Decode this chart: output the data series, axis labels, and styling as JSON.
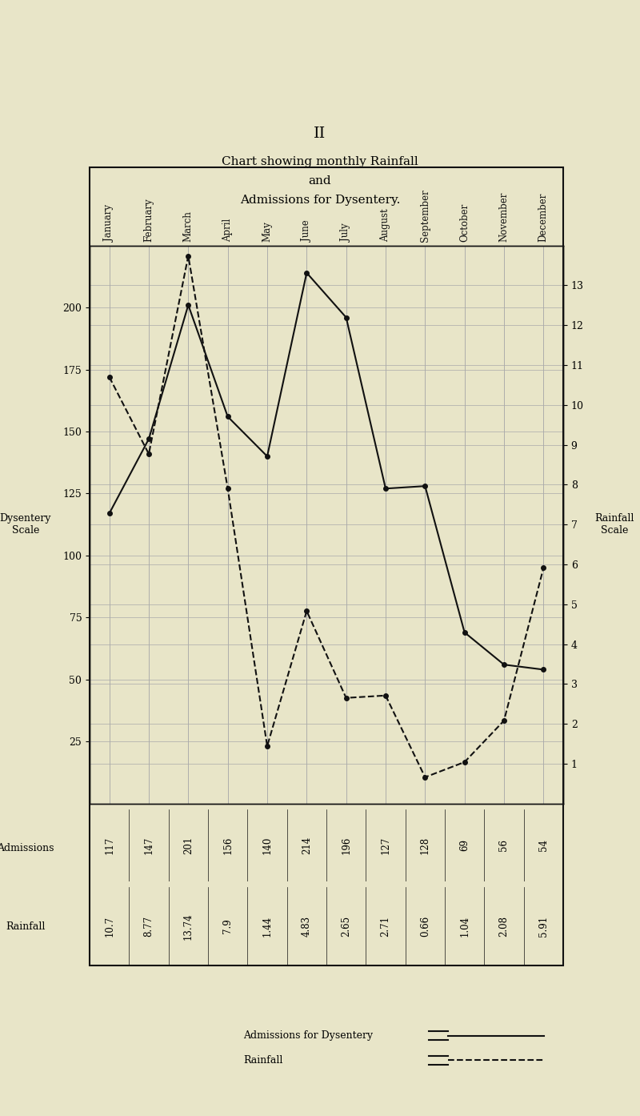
{
  "title_roman": "II",
  "title_line1": "Chart showing monthly Rainfall",
  "title_line2": "and",
  "title_line3": "Admissions for Dysentery.",
  "months": [
    "January",
    "February",
    "March",
    "April",
    "May",
    "June",
    "July",
    "August",
    "September",
    "October",
    "November",
    "December"
  ],
  "admissions": [
    117,
    147,
    201,
    156,
    140,
    214,
    196,
    127,
    128,
    69,
    56,
    54
  ],
  "rainfall": [
    10.7,
    8.77,
    13.74,
    7.9,
    1.44,
    4.83,
    2.65,
    2.71,
    0.66,
    1.04,
    2.08,
    5.91
  ],
  "dysentery_scale_label": "Dysentery\nScale",
  "rainfall_scale_label": "Rainfall\nScale",
  "admissions_row_label": "Admissions",
  "rainfall_row_label": "Rainfall",
  "legend_admissions": "Admissions for Dysentery",
  "legend_rainfall": "Rainfall",
  "bg_color": "#e8e5c8",
  "paper_color": "#ddd9b8",
  "grid_color": "#aaaaaa",
  "line_color": "#111111",
  "left_ylim": [
    0,
    225
  ],
  "right_ylim": [
    0,
    14.0
  ],
  "left_yticks": [
    25,
    50,
    75,
    100,
    125,
    150,
    175,
    200
  ],
  "right_yticks": [
    1,
    2,
    3,
    4,
    5,
    6,
    7,
    8,
    9,
    10,
    11,
    12,
    13
  ],
  "right_ytick_labels": [
    "1",
    "2",
    "3",
    "4",
    "5",
    "6",
    "7",
    "8",
    "9",
    "10",
    "11",
    "12",
    "13"
  ]
}
